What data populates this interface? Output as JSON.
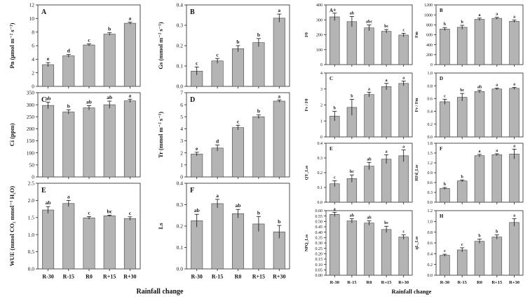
{
  "figure": {
    "colors": {
      "bar": "#b4b4b4",
      "bar_edge": "#444444",
      "axis": "#222222",
      "text": "#111111"
    },
    "left_xlabel": "Rainfall change",
    "right_xlabel": "Rainfall change"
  },
  "chart_data": [
    {
      "id": "A",
      "panel_label": "A",
      "type": "bar",
      "ylabel": "Pn (μmol m⁻² s⁻¹)",
      "ylim": [
        0,
        12
      ],
      "yticks": [
        0,
        2,
        4,
        6,
        8,
        10,
        12
      ],
      "yticklabels": [
        "0",
        "2",
        "4",
        "6",
        "8",
        "10",
        "12"
      ],
      "categories": [
        "R-30",
        "R-15",
        "R0",
        "R+15",
        "R+30"
      ],
      "values": [
        3.2,
        4.5,
        6.1,
        7.7,
        9.3
      ],
      "errors": [
        0.3,
        0.2,
        0.15,
        0.2,
        0.15
      ],
      "letters": [
        "e",
        "d",
        "c",
        "b",
        "a"
      ],
      "xticklabels": []
    },
    {
      "id": "B",
      "panel_label": "B",
      "type": "bar",
      "ylabel": "Gs (mmol m⁻² s⁻¹)",
      "ylim": [
        0,
        0.4
      ],
      "yticks": [
        0,
        0.1,
        0.2,
        0.3,
        0.4
      ],
      "yticklabels": [
        "0.0",
        "0.1",
        "0.2",
        "0.3",
        "0.4"
      ],
      "categories": [
        "R-30",
        "R-15",
        "R0",
        "R+15",
        "R+30"
      ],
      "values": [
        0.075,
        0.125,
        0.185,
        0.215,
        0.335
      ],
      "errors": [
        0.02,
        0.012,
        0.015,
        0.02,
        0.02
      ],
      "letters": [
        "c",
        "c",
        "b",
        "b",
        "a"
      ],
      "xticklabels": []
    },
    {
      "id": "C",
      "panel_label": "C",
      "type": "bar",
      "ylabel": "Ci (ppm)",
      "ylim": [
        0,
        350
      ],
      "yticks": [
        0,
        50,
        100,
        150,
        200,
        250,
        300,
        350
      ],
      "yticklabels": [
        "0",
        "50",
        "100",
        "150",
        "200",
        "250",
        "300",
        "350"
      ],
      "categories": [
        "R-30",
        "R-15",
        "R0",
        "R+15",
        "R+30"
      ],
      "values": [
        297,
        270,
        287,
        300,
        316
      ],
      "errors": [
        14,
        9,
        9,
        15,
        7
      ],
      "letters": [
        "ab",
        "b",
        "ab",
        "ab",
        "a"
      ],
      "xticklabels": []
    },
    {
      "id": "D",
      "panel_label": "D",
      "type": "bar",
      "ylabel": "Tr (mmol m⁻² s⁻¹)",
      "ylim": [
        0,
        7
      ],
      "yticks": [
        0,
        1,
        2,
        3,
        4,
        5,
        6,
        7
      ],
      "yticklabels": [
        "0",
        "1",
        "2",
        "3",
        "4",
        "5",
        "6",
        "7"
      ],
      "categories": [
        "R-30",
        "R-15",
        "R0",
        "R+15",
        "R+30"
      ],
      "values": [
        1.9,
        2.4,
        4.1,
        5.0,
        6.3
      ],
      "errors": [
        0.15,
        0.25,
        0.2,
        0.15,
        0.1
      ],
      "letters": [
        "e",
        "d",
        "c",
        "b",
        "a"
      ],
      "xticklabels": []
    },
    {
      "id": "E",
      "panel_label": "E",
      "type": "bar",
      "ylabel": "WUE (mmol CO₂ mmol⁻¹ H₂O)",
      "ylim": [
        0,
        2.5
      ],
      "yticks": [
        0,
        0.5,
        1.0,
        1.5,
        2.0,
        2.5
      ],
      "yticklabels": [
        "0.0",
        "0.5",
        "1.0",
        "1.5",
        "2.0",
        "2.5"
      ],
      "categories": [
        "R-30",
        "R-15",
        "R0",
        "R+15",
        "R+30"
      ],
      "values": [
        1.72,
        1.91,
        1.49,
        1.55,
        1.47
      ],
      "errors": [
        0.1,
        0.09,
        0.04,
        0.02,
        0.05
      ],
      "letters": [
        "ab",
        "a",
        "c",
        "bc",
        "c"
      ],
      "xticklabels": [
        "R-30",
        "R-15",
        "R0",
        "R+15",
        "R+30"
      ]
    },
    {
      "id": "F",
      "panel_label": "F",
      "type": "bar",
      "ylabel": "Ls",
      "ylim": [
        0,
        0.4
      ],
      "yticks": [
        0,
        0.1,
        0.2,
        0.3,
        0.4
      ],
      "yticklabels": [
        "0.0",
        "0.1",
        "0.2",
        "0.3",
        "0.4"
      ],
      "categories": [
        "R-30",
        "R-15",
        "R0",
        "R+15",
        "R+30"
      ],
      "values": [
        0.225,
        0.305,
        0.258,
        0.21,
        0.173
      ],
      "errors": [
        0.03,
        0.02,
        0.02,
        0.035,
        0.03
      ],
      "letters": [
        "ab",
        "a",
        "ab",
        "b",
        "b"
      ],
      "xticklabels": [
        "R-30",
        "R-15",
        "R0",
        "R+15",
        "R+30"
      ]
    },
    {
      "id": "RA",
      "panel_label": "A",
      "type": "bar",
      "ylabel": "F0",
      "ylim": [
        0,
        400
      ],
      "yticks": [
        0,
        100,
        200,
        300,
        400
      ],
      "yticklabels": [
        "0",
        "100",
        "200",
        "300",
        "400"
      ],
      "categories": [
        "R-30",
        "R-15",
        "R0",
        "R+15",
        "R+30"
      ],
      "values": [
        320,
        288,
        246,
        223,
        198
      ],
      "errors": [
        25,
        35,
        20,
        12,
        12
      ],
      "letters": [
        "a",
        "ab",
        "abc",
        "bc",
        "c"
      ],
      "xticklabels": []
    },
    {
      "id": "RB",
      "panel_label": "B",
      "type": "bar",
      "ylabel": "Fm",
      "ylim": [
        0,
        1200
      ],
      "yticks": [
        0,
        200,
        400,
        600,
        800,
        1000,
        1200
      ],
      "yticklabels": [
        "0",
        "200",
        "400",
        "600",
        "800",
        "1000",
        "1200"
      ],
      "categories": [
        "R-30",
        "R-15",
        "R0",
        "R+15",
        "R+30"
      ],
      "values": [
        715,
        750,
        910,
        930,
        870
      ],
      "errors": [
        30,
        40,
        25,
        20,
        25
      ],
      "letters": [
        "b",
        "b",
        "a",
        "a",
        "a"
      ],
      "xticklabels": []
    },
    {
      "id": "RC",
      "panel_label": "C",
      "type": "bar",
      "ylabel": "Fv / F0",
      "ylim": [
        0,
        4
      ],
      "yticks": [
        0,
        1,
        2,
        3,
        4
      ],
      "yticklabels": [
        "0",
        "1",
        "2",
        "3",
        "4"
      ],
      "categories": [
        "R-30",
        "R-15",
        "R0",
        "R+15",
        "R+30"
      ],
      "values": [
        1.3,
        1.85,
        2.65,
        3.15,
        3.35
      ],
      "errors": [
        0.3,
        0.5,
        0.15,
        0.2,
        0.15
      ],
      "letters": [
        "b",
        "b",
        "a",
        "a",
        "a"
      ],
      "xticklabels": []
    },
    {
      "id": "RD",
      "panel_label": "D",
      "type": "bar",
      "ylabel": "Fv / Fm",
      "ylim": [
        0,
        1.0
      ],
      "yticks": [
        0,
        0.2,
        0.4,
        0.6,
        0.8,
        1.0
      ],
      "yticklabels": [
        "0.0",
        "0.2",
        "0.4",
        "0.6",
        "0.8",
        "1.0"
      ],
      "categories": [
        "R-30",
        "R-15",
        "R0",
        "R+15",
        "R+30"
      ],
      "values": [
        0.55,
        0.62,
        0.71,
        0.75,
        0.76
      ],
      "errors": [
        0.04,
        0.06,
        0.02,
        0.015,
        0.015
      ],
      "letters": [
        "c",
        "bc",
        "ab",
        "a",
        "a"
      ],
      "xticklabels": []
    },
    {
      "id": "RE",
      "panel_label": "E",
      "type": "bar",
      "ylabel": "QY_Lss",
      "ylim": [
        0,
        0.4
      ],
      "yticks": [
        0,
        0.1,
        0.2,
        0.3,
        0.4
      ],
      "yticklabels": [
        "0.0",
        "0.1",
        "0.2",
        "0.3",
        "0.4"
      ],
      "categories": [
        "R-30",
        "R-15",
        "R0",
        "R+15",
        "R+30"
      ],
      "values": [
        0.125,
        0.16,
        0.245,
        0.292,
        0.315
      ],
      "errors": [
        0.02,
        0.025,
        0.025,
        0.03,
        0.04
      ],
      "letters": [
        "c",
        "bc",
        "ab",
        "a",
        "a"
      ],
      "xticklabels": []
    },
    {
      "id": "RF",
      "panel_label": "F",
      "type": "bar",
      "ylabel": "RFd_Lss",
      "ylim": [
        0,
        1.8
      ],
      "yticks": [
        0,
        0.3,
        0.6,
        0.9,
        1.2,
        1.5,
        1.8
      ],
      "yticklabels": [
        "0.0",
        "0.3",
        "0.6",
        "0.9",
        "1.2",
        "1.5",
        "1.8"
      ],
      "categories": [
        "R-30",
        "R-15",
        "R0",
        "R+15",
        "R+30"
      ],
      "values": [
        0.42,
        0.65,
        1.42,
        1.45,
        1.47
      ],
      "errors": [
        0.03,
        0.03,
        0.04,
        0.03,
        0.15
      ],
      "letters": [
        "b",
        "b",
        "a",
        "a",
        "a"
      ],
      "xticklabels": []
    },
    {
      "id": "RG",
      "panel_label": "G",
      "type": "bar",
      "ylabel": "NPQ_Lss",
      "ylim": [
        0,
        0.6
      ],
      "yticks": [
        0,
        0.05,
        0.1,
        0.15,
        0.2,
        0.25,
        0.3,
        0.35,
        0.4,
        0.45,
        0.5,
        0.55,
        0.6
      ],
      "yticklabels": [
        "0.00",
        "0.05",
        "0.10",
        "0.15",
        "0.20",
        "0.25",
        "0.30",
        "0.35",
        "0.40",
        "0.45",
        "0.50",
        "0.55",
        "0.60"
      ],
      "categories": [
        "R-30",
        "R-15",
        "R0",
        "R+15",
        "R+30"
      ],
      "values": [
        0.565,
        0.505,
        0.485,
        0.425,
        0.355
      ],
      "errors": [
        0.02,
        0.02,
        0.02,
        0.03,
        0.02
      ],
      "letters": [
        "a",
        "ab",
        "ab",
        "bc",
        "c"
      ],
      "xticklabels": [
        "R-30",
        "R-15",
        "R0",
        "R+15",
        "R+30"
      ]
    },
    {
      "id": "RH",
      "panel_label": "H",
      "type": "bar",
      "ylabel": "qL_Lss",
      "ylim": [
        0,
        1.2
      ],
      "yticks": [
        0,
        0.2,
        0.4,
        0.6,
        0.8,
        1.0,
        1.2
      ],
      "yticklabels": [
        "0.0",
        "0.2",
        "0.4",
        "0.6",
        "0.8",
        "1.0",
        "1.2"
      ],
      "categories": [
        "R-30",
        "R-15",
        "R0",
        "R+15",
        "R+30"
      ],
      "values": [
        0.37,
        0.47,
        0.63,
        0.71,
        0.98
      ],
      "errors": [
        0.02,
        0.04,
        0.04,
        0.04,
        0.07
      ],
      "letters": [
        "c",
        "c",
        "b",
        "b",
        "a"
      ],
      "xticklabels": [
        "R-30",
        "R-15",
        "R0",
        "R+15",
        "R+30"
      ]
    }
  ]
}
